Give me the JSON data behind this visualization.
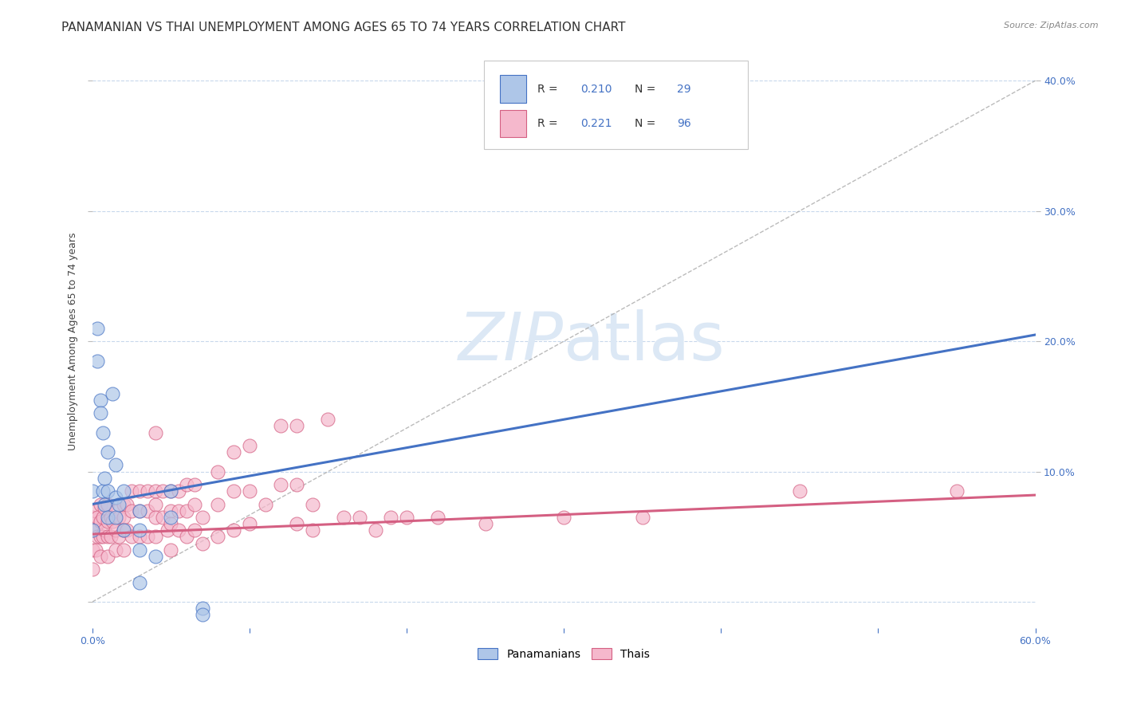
{
  "title": "PANAMANIAN VS THAI UNEMPLOYMENT AMONG AGES 65 TO 74 YEARS CORRELATION CHART",
  "source": "Source: ZipAtlas.com",
  "ylabel": "Unemployment Among Ages 65 to 74 years",
  "xlim": [
    0.0,
    0.6
  ],
  "ylim": [
    -0.02,
    0.42
  ],
  "yticklabels_right": [
    "10.0%",
    "20.0%",
    "30.0%",
    "40.0%"
  ],
  "yticks_right": [
    0.1,
    0.2,
    0.3,
    0.4
  ],
  "panama_R": 0.21,
  "panama_N": 29,
  "thai_R": 0.221,
  "thai_N": 96,
  "panama_color": "#aec6e8",
  "thai_color": "#f5b8cc",
  "panama_line_color": "#4472c4",
  "thai_line_color": "#d45f82",
  "ref_line_color": "#aaaaaa",
  "panama_scatter_x": [
    0.0,
    0.0,
    0.003,
    0.003,
    0.005,
    0.005,
    0.007,
    0.007,
    0.008,
    0.008,
    0.01,
    0.01,
    0.01,
    0.013,
    0.015,
    0.015,
    0.015,
    0.017,
    0.02,
    0.02,
    0.03,
    0.03,
    0.03,
    0.03,
    0.04,
    0.05,
    0.05,
    0.07,
    0.07
  ],
  "panama_scatter_y": [
    0.085,
    0.055,
    0.21,
    0.185,
    0.155,
    0.145,
    0.13,
    0.085,
    0.095,
    0.075,
    0.115,
    0.085,
    0.065,
    0.16,
    0.105,
    0.08,
    0.065,
    0.075,
    0.085,
    0.055,
    0.07,
    0.055,
    0.04,
    0.015,
    0.035,
    0.085,
    0.065,
    -0.005,
    -0.01
  ],
  "thai_scatter_x": [
    0.0,
    0.0,
    0.0,
    0.0,
    0.002,
    0.002,
    0.002,
    0.003,
    0.003,
    0.005,
    0.005,
    0.005,
    0.005,
    0.007,
    0.007,
    0.008,
    0.008,
    0.01,
    0.01,
    0.01,
    0.01,
    0.012,
    0.012,
    0.013,
    0.015,
    0.015,
    0.015,
    0.017,
    0.017,
    0.02,
    0.02,
    0.02,
    0.02,
    0.022,
    0.022,
    0.025,
    0.025,
    0.025,
    0.03,
    0.03,
    0.03,
    0.035,
    0.035,
    0.035,
    0.04,
    0.04,
    0.04,
    0.04,
    0.04,
    0.045,
    0.045,
    0.048,
    0.05,
    0.05,
    0.05,
    0.05,
    0.055,
    0.055,
    0.055,
    0.06,
    0.06,
    0.06,
    0.065,
    0.065,
    0.065,
    0.07,
    0.07,
    0.08,
    0.08,
    0.08,
    0.09,
    0.09,
    0.09,
    0.1,
    0.1,
    0.1,
    0.11,
    0.12,
    0.12,
    0.13,
    0.13,
    0.13,
    0.14,
    0.14,
    0.15,
    0.16,
    0.17,
    0.18,
    0.19,
    0.2,
    0.22,
    0.25,
    0.3,
    0.35,
    0.45,
    0.55
  ],
  "thai_scatter_y": [
    0.065,
    0.055,
    0.04,
    0.025,
    0.07,
    0.055,
    0.04,
    0.065,
    0.05,
    0.075,
    0.062,
    0.05,
    0.035,
    0.065,
    0.05,
    0.072,
    0.055,
    0.075,
    0.062,
    0.05,
    0.035,
    0.065,
    0.05,
    0.062,
    0.07,
    0.055,
    0.04,
    0.065,
    0.05,
    0.075,
    0.065,
    0.055,
    0.04,
    0.075,
    0.055,
    0.085,
    0.07,
    0.05,
    0.085,
    0.07,
    0.05,
    0.085,
    0.07,
    0.05,
    0.085,
    0.075,
    0.065,
    0.05,
    0.13,
    0.085,
    0.065,
    0.055,
    0.085,
    0.07,
    0.06,
    0.04,
    0.085,
    0.07,
    0.055,
    0.09,
    0.07,
    0.05,
    0.09,
    0.075,
    0.055,
    0.065,
    0.045,
    0.1,
    0.075,
    0.05,
    0.115,
    0.085,
    0.055,
    0.12,
    0.085,
    0.06,
    0.075,
    0.135,
    0.09,
    0.135,
    0.09,
    0.06,
    0.075,
    0.055,
    0.14,
    0.065,
    0.065,
    0.055,
    0.065,
    0.065,
    0.065,
    0.06,
    0.065,
    0.065,
    0.085,
    0.085
  ],
  "panama_trend_x": [
    0.0,
    0.6
  ],
  "panama_trend_y": [
    0.075,
    0.205
  ],
  "thai_trend_x": [
    0.0,
    0.6
  ],
  "thai_trend_y": [
    0.052,
    0.082
  ],
  "ref_line_x": [
    0.0,
    0.6
  ],
  "ref_line_y": [
    0.0,
    0.4
  ],
  "background_color": "#ffffff",
  "grid_color": "#c8d8ec",
  "title_fontsize": 11,
  "axis_label_fontsize": 9,
  "tick_fontsize": 9,
  "watermark_color": "#dce8f5",
  "watermark_fontsize": 60
}
